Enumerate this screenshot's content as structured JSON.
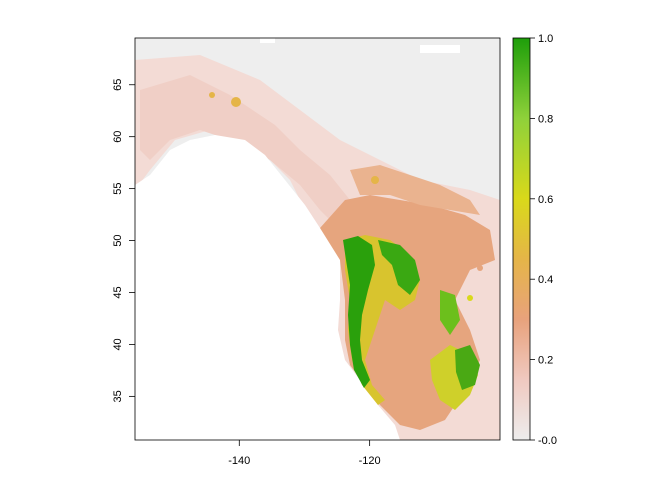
{
  "map": {
    "x_axis": {
      "ticks": [
        -140,
        -120
      ],
      "labels": [
        "-140",
        "-120"
      ],
      "range": [
        -156,
        -100
      ]
    },
    "y_axis": {
      "ticks": [
        35,
        40,
        45,
        50,
        55,
        60,
        65
      ],
      "labels": [
        "35",
        "40",
        "45",
        "50",
        "55",
        "60",
        "65"
      ],
      "range": [
        30.8,
        69.5
      ]
    },
    "legend": {
      "ticks": [
        0,
        0.2,
        0.4,
        0.6,
        0.8,
        1.0
      ],
      "labels": [
        "-0.0",
        "0.2",
        "0.4",
        "0.6",
        "0.8",
        "1.0"
      ],
      "placement": "right",
      "colors": [
        "#ededed",
        "#f0c9c0",
        "#e8a27c",
        "#e5b548",
        "#d9d91a",
        "#8fd13a",
        "#1e9e0a"
      ]
    },
    "colors": {
      "background_land": "#eeeeee",
      "ocean": "#ffffff",
      "low_suitability": "#f1cfc7",
      "mid_suitability": "#e6a57e",
      "high_suitability": "#dcc62a",
      "top_suitability": "#2aa00c"
    }
  }
}
